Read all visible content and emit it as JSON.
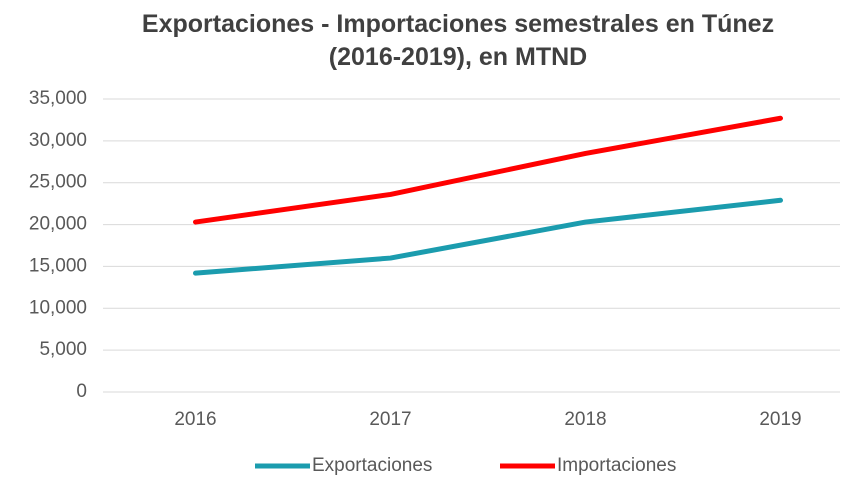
{
  "chart_data": {
    "type": "line",
    "title": "Exportaciones - Importaciones semestrales en Túnez (2016-2019), en MTND",
    "categories": [
      "2016",
      "2017",
      "2018",
      "2019"
    ],
    "series": [
      {
        "name": "Exportaciones",
        "color": "#1b9cae",
        "values": [
          14200,
          16000,
          20300,
          22900
        ]
      },
      {
        "name": "Importaciones",
        "color": "#ff0000",
        "values": [
          20300,
          23600,
          28500,
          32700
        ]
      }
    ],
    "ylim": [
      0,
      35000
    ],
    "yticks": [
      0,
      {
        "value": 5000,
        "label": "5,000"
      },
      {
        "value": 10000,
        "label": "10,000"
      },
      {
        "value": 15000,
        "label": "15,000"
      },
      {
        "value": 20000,
        "label": "20,000"
      },
      {
        "value": 25000,
        "label": "25,000"
      },
      {
        "value": 30000,
        "label": "30,000"
      },
      {
        "value": 35000,
        "label": "35,000"
      }
    ],
    "grid": true,
    "legend": "bottom"
  }
}
